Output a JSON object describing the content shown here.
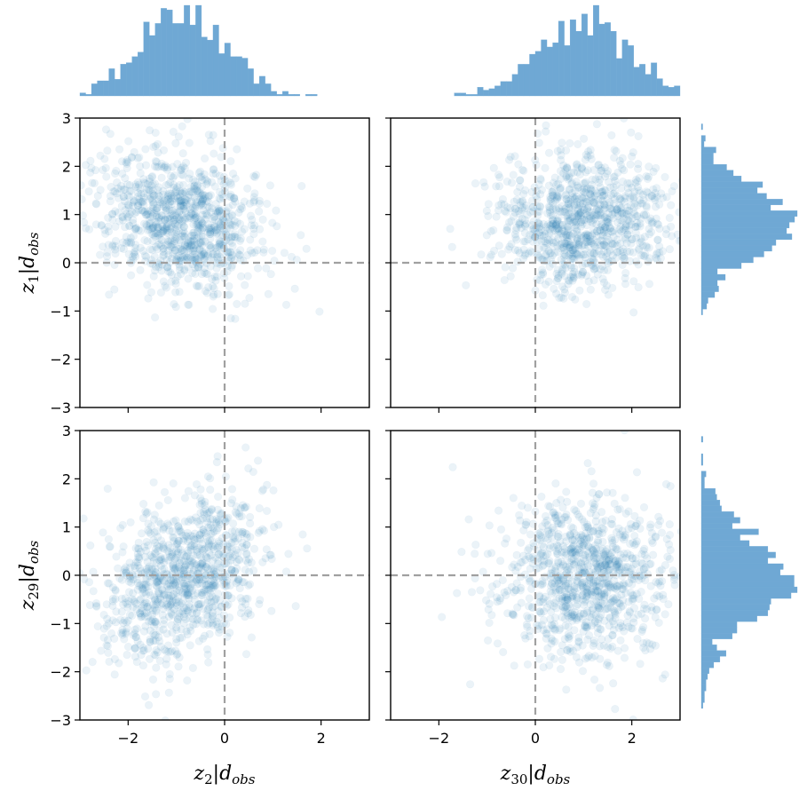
{
  "chart_data": {
    "type": "scatter",
    "layout": "2x2 corner plot with marginal histograms",
    "axis_range": [
      -3,
      3
    ],
    "tick_values": [
      -3,
      -2,
      -1,
      0,
      1,
      2,
      3
    ],
    "x_tick_values": [
      -2,
      0,
      2
    ],
    "grid": false,
    "reference_lines": {
      "x": 0,
      "y": 0,
      "style": "dashed",
      "color": "#a0a0a0"
    },
    "point_color": "#1f77b4",
    "hist_color": "#6fa8d4",
    "num_points_per_panel": 1000,
    "x_variables": [
      {
        "name": "z",
        "sub": "2",
        "cond": "d",
        "cond_sub": "obs",
        "mean": -0.9,
        "sd": 0.85
      },
      {
        "name": "z",
        "sub": "30",
        "cond": "d",
        "cond_sub": "obs",
        "mean": 1.05,
        "sd": 0.9
      }
    ],
    "y_variables": [
      {
        "name": "z",
        "sub": "1",
        "cond": "d",
        "cond_sub": "obs",
        "mean": 0.85,
        "sd": 0.7
      },
      {
        "name": "z",
        "sub": "29",
        "cond": "d",
        "cond_sub": "obs",
        "mean": -0.05,
        "sd": 0.85
      }
    ],
    "panels": [
      {
        "row": 0,
        "col": 0,
        "x_var": 0,
        "y_var": 0,
        "correlation": -0.25
      },
      {
        "row": 0,
        "col": 1,
        "x_var": 1,
        "y_var": 0,
        "correlation": 0.1
      },
      {
        "row": 1,
        "col": 0,
        "x_var": 0,
        "y_var": 1,
        "correlation": 0.35
      },
      {
        "row": 1,
        "col": 1,
        "x_var": 1,
        "y_var": 1,
        "correlation": 0.0
      }
    ],
    "xlabels": [
      "z2|dobs",
      "z30|dobs"
    ],
    "ylabels": [
      "z1|dobs",
      "z29|dobs"
    ]
  }
}
